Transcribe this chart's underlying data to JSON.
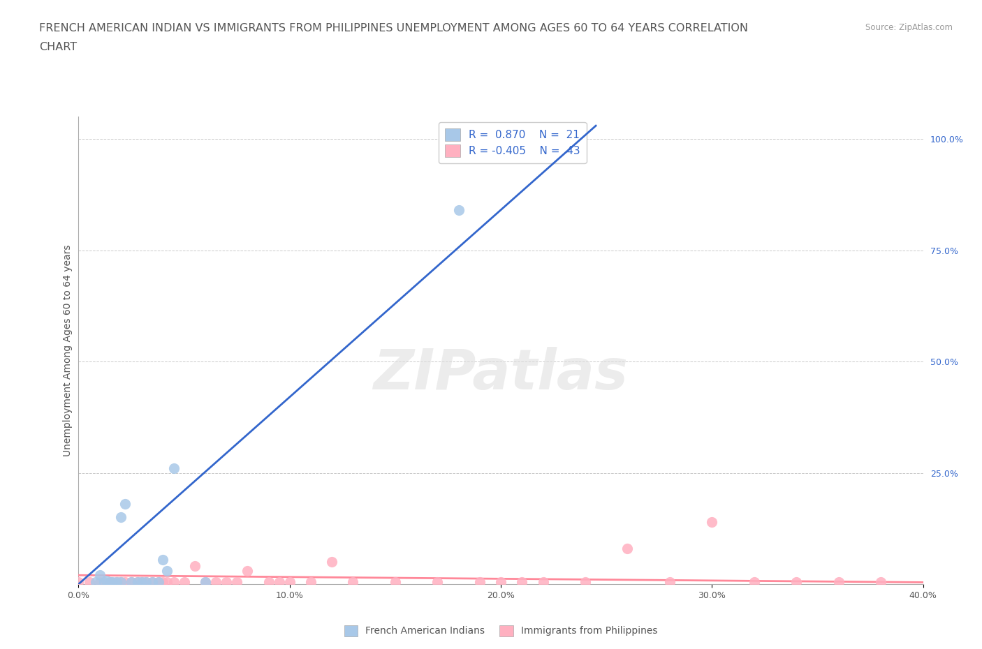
{
  "title_line1": "FRENCH AMERICAN INDIAN VS IMMIGRANTS FROM PHILIPPINES UNEMPLOYMENT AMONG AGES 60 TO 64 YEARS CORRELATION",
  "title_line2": "CHART",
  "source_text": "Source: ZipAtlas.com",
  "ylabel": "Unemployment Among Ages 60 to 64 years",
  "watermark": "ZIPatlas",
  "xlim": [
    0.0,
    0.4
  ],
  "ylim": [
    0.0,
    1.05
  ],
  "xtick_labels": [
    "0.0%",
    "10.0%",
    "20.0%",
    "30.0%",
    "40.0%"
  ],
  "xtick_values": [
    0.0,
    0.1,
    0.2,
    0.3,
    0.4
  ],
  "ytick_right_labels": [
    "100.0%",
    "75.0%",
    "50.0%",
    "25.0%"
  ],
  "ytick_right_values": [
    1.0,
    0.75,
    0.5,
    0.25
  ],
  "blue_scatter_x": [
    0.008,
    0.01,
    0.012,
    0.013,
    0.015,
    0.016,
    0.018,
    0.02,
    0.02,
    0.022,
    0.025,
    0.028,
    0.03,
    0.032,
    0.035,
    0.038,
    0.04,
    0.042,
    0.045,
    0.06,
    0.18
  ],
  "blue_scatter_y": [
    0.005,
    0.02,
    0.005,
    0.008,
    0.005,
    0.005,
    0.005,
    0.005,
    0.15,
    0.18,
    0.005,
    0.005,
    0.005,
    0.005,
    0.005,
    0.005,
    0.055,
    0.03,
    0.26,
    0.005,
    0.84
  ],
  "pink_scatter_x": [
    0.0,
    0.005,
    0.01,
    0.015,
    0.018,
    0.02,
    0.022,
    0.025,
    0.028,
    0.03,
    0.032,
    0.035,
    0.038,
    0.04,
    0.042,
    0.045,
    0.05,
    0.055,
    0.06,
    0.065,
    0.07,
    0.075,
    0.08,
    0.09,
    0.095,
    0.1,
    0.11,
    0.12,
    0.13,
    0.15,
    0.17,
    0.19,
    0.2,
    0.21,
    0.22,
    0.24,
    0.26,
    0.28,
    0.3,
    0.32,
    0.34,
    0.36,
    0.38
  ],
  "pink_scatter_y": [
    0.005,
    0.005,
    0.005,
    0.005,
    0.005,
    0.005,
    0.005,
    0.005,
    0.005,
    0.005,
    0.005,
    0.005,
    0.005,
    0.005,
    0.005,
    0.005,
    0.005,
    0.04,
    0.005,
    0.005,
    0.005,
    0.005,
    0.03,
    0.005,
    0.005,
    0.005,
    0.005,
    0.05,
    0.005,
    0.005,
    0.005,
    0.005,
    0.005,
    0.005,
    0.005,
    0.005,
    0.08,
    0.005,
    0.14,
    0.005,
    0.005,
    0.005,
    0.005
  ],
  "blue_line_x": [
    0.0,
    0.245
  ],
  "blue_line_y": [
    0.0,
    1.03
  ],
  "pink_line_x": [
    0.0,
    0.4
  ],
  "pink_line_y": [
    0.02,
    0.004
  ],
  "blue_scatter_color": "#A8C8E8",
  "pink_scatter_color": "#FFB0C0",
  "blue_line_color": "#3366CC",
  "pink_line_color": "#FF8899",
  "legend_R1": "0.870",
  "legend_N1": "21",
  "legend_R2": "-0.405",
  "legend_N2": "43",
  "legend_label1": "French American Indians",
  "legend_label2": "Immigrants from Philippines",
  "title_fontsize": 11.5,
  "axis_label_fontsize": 10,
  "tick_fontsize": 9,
  "background_color": "#FFFFFF",
  "grid_color": "#BBBBBB",
  "right_tick_color": "#3366CC",
  "text_color": "#555555"
}
